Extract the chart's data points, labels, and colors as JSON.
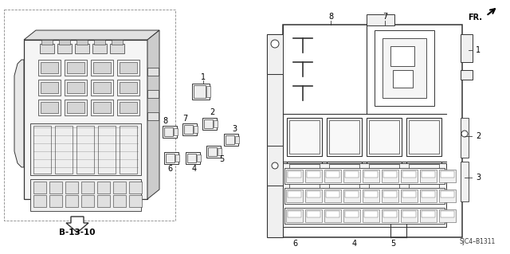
{
  "bg_color": "#ffffff",
  "ref_code": "SJC4–B1311",
  "page_ref": "B-13-10",
  "fr_label": "FR.",
  "lc": "#333333",
  "lw_main": 1.0,
  "lw_thin": 0.5,
  "fc_white": "#ffffff",
  "fc_light": "#f0f0f0",
  "fc_mid": "#d8d8d8",
  "fc_dark": "#aaaaaa"
}
